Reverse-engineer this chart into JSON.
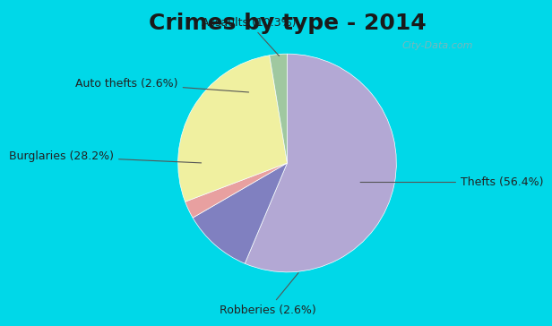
{
  "title": "Crimes by type - 2014",
  "slices": [
    {
      "label": "Thefts (56.4%)",
      "value": 56.4,
      "color": "#b3a8d4"
    },
    {
      "label": "Assaults (10.3%)",
      "value": 10.3,
      "color": "#8080c0"
    },
    {
      "label": "Auto thefts (2.6%)",
      "value": 2.6,
      "color": "#e8a0a0"
    },
    {
      "label": "Burglaries (28.2%)",
      "value": 28.2,
      "color": "#f0f0a0"
    },
    {
      "label": "Robberies (2.6%)",
      "value": 2.6,
      "color": "#a0c8a0"
    }
  ],
  "bg_color_top": "#00d8e8",
  "bg_color_main": "#c8e8d8",
  "title_fontsize": 18,
  "label_fontsize": 9,
  "watermark": "City-Data.com"
}
